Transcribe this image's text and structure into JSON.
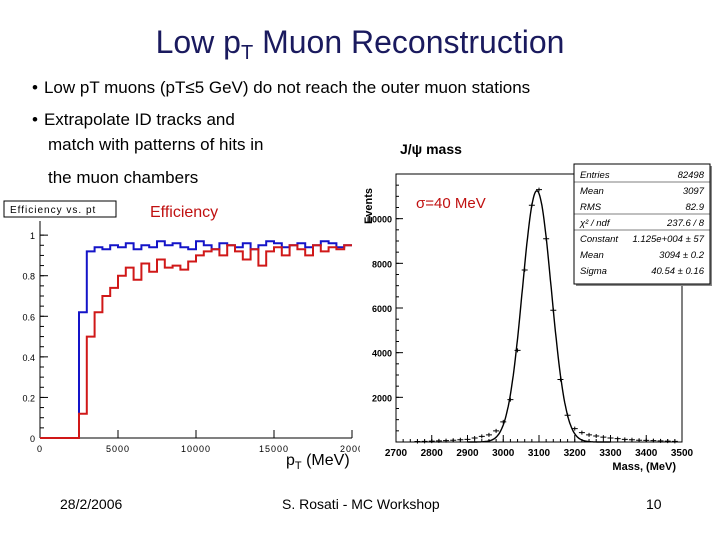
{
  "title": {
    "main": "Low p",
    "sub": "T",
    "rest": " Muon Reconstruction"
  },
  "bullets": [
    "Low pT muons (pT≤5 GeV) do not reach the outer muon stations",
    "Extrapolate ID tracks and",
    "match with patterns of hits in",
    "the muon chambers"
  ],
  "bullet_marker": "•",
  "footer": {
    "date": "28/2/2006",
    "center": "S. Rosati - MC Workshop",
    "page": "10"
  },
  "chart_data": [
    {
      "type": "line",
      "title": "Efficiency vs. pt",
      "label": "Efficiency",
      "xlabel_main": "p",
      "xlabel_sub": "T",
      "xlabel_unit": " (MeV)",
      "xlim": [
        0,
        20000
      ],
      "ylim": [
        0,
        1.05
      ],
      "x_ticks": [
        "0",
        "5000",
        "10000",
        "15000",
        "2000"
      ],
      "y_ticks": [
        {
          "v": 0,
          "t": "0"
        },
        {
          "v": 0.2,
          "t": "0.2"
        },
        {
          "v": 0.4,
          "t": "0.4"
        },
        {
          "v": 0.6,
          "t": "0.6"
        },
        {
          "v": 0.8,
          "t": "0.8"
        },
        {
          "v": 1,
          "t": "1"
        }
      ],
      "series": [
        {
          "name": "blue",
          "color": "#1414c8",
          "x": [
            0,
            1000,
            2000,
            2500,
            3000,
            3500,
            4000,
            4500,
            5000,
            5500,
            6000,
            6500,
            7000,
            7500,
            8000,
            8500,
            9000,
            9500,
            10000,
            10500,
            11000,
            11500,
            12000,
            12500,
            13000,
            13500,
            14000,
            14500,
            15000,
            15500,
            16000,
            16500,
            17000,
            17500,
            18000,
            18500,
            19000,
            19500,
            20000
          ],
          "values": [
            0,
            0,
            0,
            0.62,
            0.92,
            0.94,
            0.93,
            0.95,
            0.94,
            0.96,
            0.93,
            0.95,
            0.94,
            0.97,
            0.95,
            0.96,
            0.94,
            0.93,
            0.97,
            0.95,
            0.93,
            0.96,
            0.95,
            0.94,
            0.96,
            0.93,
            0.95,
            0.97,
            0.96,
            0.94,
            0.95,
            0.96,
            0.94,
            0.95,
            0.97,
            0.96,
            0.94,
            0.95,
            0.95
          ]
        },
        {
          "name": "red",
          "color": "#d01818",
          "x": [
            0,
            1000,
            2000,
            2500,
            3000,
            3500,
            4000,
            4500,
            5000,
            5500,
            6000,
            6500,
            7000,
            7500,
            8000,
            8500,
            9000,
            9500,
            10000,
            10500,
            11000,
            11500,
            12000,
            12500,
            13000,
            13500,
            14000,
            14500,
            15000,
            15500,
            16000,
            16500,
            17000,
            17500,
            18000,
            18500,
            19000,
            19500,
            20000
          ],
          "values": [
            0,
            0,
            0,
            0.12,
            0.5,
            0.62,
            0.7,
            0.74,
            0.8,
            0.84,
            0.78,
            0.86,
            0.82,
            0.88,
            0.84,
            0.85,
            0.83,
            0.87,
            0.9,
            0.92,
            0.93,
            0.9,
            0.95,
            0.92,
            0.88,
            0.93,
            0.85,
            0.92,
            0.94,
            0.9,
            0.95,
            0.93,
            0.9,
            0.95,
            0.92,
            0.94,
            0.93,
            0.95,
            0.95
          ]
        }
      ]
    },
    {
      "type": "scatter",
      "title": "J/ψ mass",
      "annotation": "σ=40 MeV",
      "xlabel": "Mass, (MeV)",
      "ylabel": "Events",
      "xlim": [
        2700,
        3500
      ],
      "ylim": [
        0,
        12000
      ],
      "x_ticks": [
        2700,
        2800,
        2900,
        3000,
        3100,
        3200,
        3300,
        3400,
        3500
      ],
      "y_ticks": [
        2000,
        4000,
        6000,
        8000,
        10000
      ],
      "fit": {
        "constant": 11250,
        "mean": 3094,
        "sigma": 40.54
      },
      "points": {
        "x": [
          2760,
          2780,
          2800,
          2820,
          2840,
          2860,
          2880,
          2900,
          2920,
          2940,
          2960,
          2980,
          3000,
          3020,
          3040,
          3060,
          3080,
          3100,
          3120,
          3140,
          3160,
          3180,
          3200,
          3220,
          3240,
          3260,
          3280,
          3300,
          3320,
          3340,
          3360,
          3380,
          3400,
          3420,
          3440,
          3460,
          3480
        ],
        "y": [
          20,
          30,
          40,
          50,
          60,
          80,
          100,
          120,
          180,
          250,
          320,
          500,
          900,
          1900,
          4100,
          7700,
          10600,
          11300,
          9100,
          5900,
          2800,
          1200,
          600,
          420,
          320,
          270,
          220,
          180,
          150,
          120,
          100,
          80,
          70,
          60,
          50,
          40,
          30
        ]
      },
      "stats": [
        {
          "k": "Entries",
          "v": "82498"
        },
        {
          "k": "Mean",
          "v": "3097"
        },
        {
          "k": "RMS",
          "v": "82.9"
        },
        {
          "k": "χ² / ndf",
          "v": "237.6 / 8"
        },
        {
          "k": "Constant",
          "v": "1.125e+004 ± 57"
        },
        {
          "k": "Mean",
          "v": "3094 ± 0.2"
        },
        {
          "k": "Sigma",
          "v": "40.54 ± 0.16"
        }
      ]
    }
  ]
}
